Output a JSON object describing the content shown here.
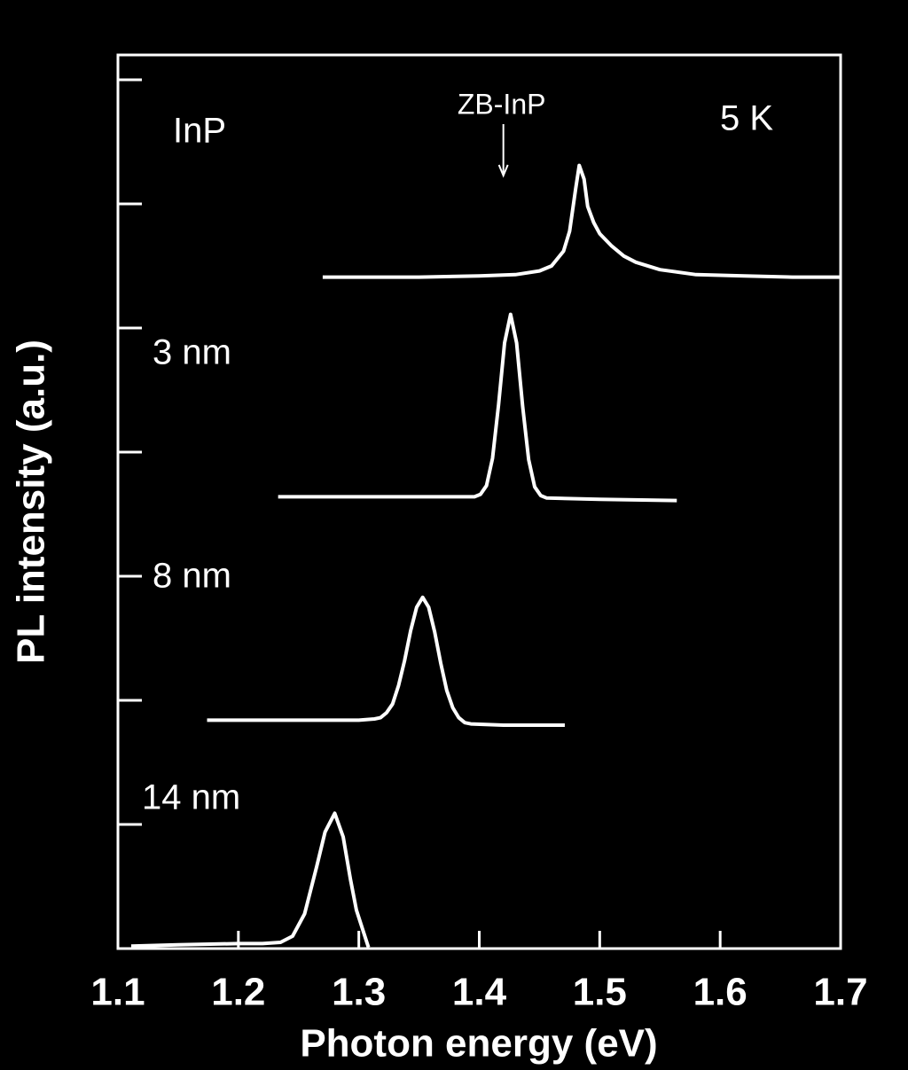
{
  "chart_data": {
    "type": "line",
    "xlabel": "Photon energy (eV)",
    "ylabel": "PL intensity (a.u.)",
    "xlim": [
      1.1,
      1.7
    ],
    "xticks": [
      1.1,
      1.2,
      1.3,
      1.4,
      1.5,
      1.6,
      1.7
    ],
    "ylim": [
      0,
      7.2
    ],
    "yticks": [
      1,
      2,
      3,
      4,
      5,
      6,
      7
    ],
    "annotations": [
      {
        "text": "InP"
      },
      {
        "text": "ZB-InP",
        "x": 1.42
      },
      {
        "text": "5 K"
      }
    ],
    "series": [
      {
        "color": "#ffffff",
        "x": [
          1.27,
          1.3,
          1.35,
          1.4,
          1.43,
          1.45,
          1.46,
          1.47,
          1.475,
          1.48,
          1.483,
          1.487,
          1.49,
          1.495,
          1.5,
          1.51,
          1.52,
          1.53,
          1.55,
          1.58,
          1.62,
          1.66,
          1.7
        ],
        "values": [
          5.41,
          5.41,
          5.41,
          5.42,
          5.43,
          5.46,
          5.5,
          5.62,
          5.78,
          6.12,
          6.31,
          6.2,
          5.98,
          5.85,
          5.76,
          5.66,
          5.58,
          5.53,
          5.47,
          5.43,
          5.42,
          5.41,
          5.41
        ]
      },
      {
        "name": "3 nm",
        "color": "#ffffff",
        "x": [
          1.233,
          1.3,
          1.35,
          1.38,
          1.396,
          1.401,
          1.406,
          1.411,
          1.416,
          1.421,
          1.426,
          1.431,
          1.436,
          1.441,
          1.446,
          1.451,
          1.456,
          1.5,
          1.564
        ],
        "values": [
          3.64,
          3.64,
          3.64,
          3.64,
          3.64,
          3.66,
          3.73,
          3.95,
          4.38,
          4.88,
          5.11,
          4.88,
          4.37,
          3.94,
          3.72,
          3.65,
          3.63,
          3.62,
          3.61
        ]
      },
      {
        "name": "8 nm",
        "color": "#ffffff",
        "x": [
          1.174,
          1.25,
          1.3,
          1.313,
          1.318,
          1.323,
          1.328,
          1.333,
          1.338,
          1.343,
          1.348,
          1.353,
          1.358,
          1.363,
          1.368,
          1.373,
          1.378,
          1.383,
          1.388,
          1.393,
          1.42,
          1.471
        ],
        "values": [
          1.84,
          1.84,
          1.84,
          1.85,
          1.86,
          1.9,
          1.97,
          2.12,
          2.32,
          2.56,
          2.75,
          2.83,
          2.75,
          2.55,
          2.3,
          2.08,
          1.94,
          1.86,
          1.82,
          1.81,
          1.8,
          1.8
        ]
      },
      {
        "name": "14 nm",
        "color": "#ffffff",
        "x": [
          1.111,
          1.15,
          1.2,
          1.22,
          1.235,
          1.245,
          1.255,
          1.265,
          1.272,
          1.28,
          1.287,
          1.293,
          1.298,
          1.303,
          1.308
        ],
        "values": [
          0.02,
          0.03,
          0.04,
          0.04,
          0.05,
          0.1,
          0.28,
          0.66,
          0.94,
          1.09,
          0.9,
          0.56,
          0.31,
          0.16,
          0.01
        ]
      }
    ]
  }
}
